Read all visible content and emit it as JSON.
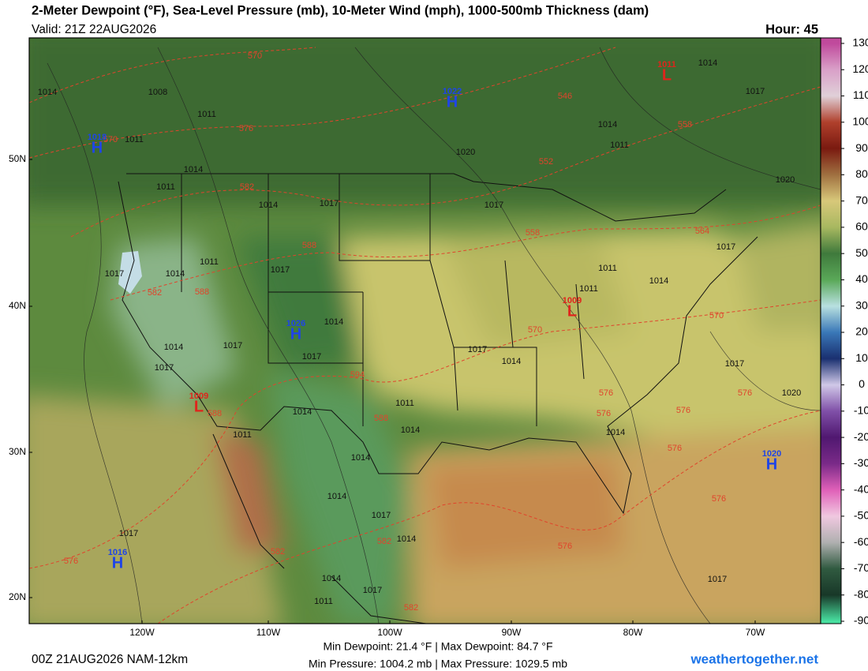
{
  "header": {
    "title": "2-Meter Dewpoint (°F), Sea-Level Pressure (mb), 10-Meter Wind (mph), 1000-500mb Thickness (dam)",
    "valid": "Valid: 21Z 22AUG2026",
    "hour": "Hour: 45"
  },
  "colorbar": {
    "ticks": [
      130,
      120,
      110,
      100,
      90,
      80,
      70,
      60,
      50,
      40,
      30,
      20,
      10,
      0,
      -10,
      -20,
      -30,
      -40,
      -50,
      -60,
      -70,
      -80,
      -90
    ],
    "colors": [
      "#c04a9c",
      "#d9a0c8",
      "#e0d0d8",
      "#b0402c",
      "#7a1a10",
      "#a07040",
      "#d8c87a",
      "#a8b860",
      "#3f7a3c",
      "#5aa858",
      "#b8e0e0",
      "#3a78b8",
      "#1a3070",
      "#d0c8e8",
      "#8050a8",
      "#501870",
      "#7a2a88",
      "#e060b8",
      "#f0c8e0",
      "#b0b0b0",
      "#305a40",
      "#183828",
      "#48e0a0"
    ]
  },
  "map": {
    "lat_labels": [
      "50N",
      "40N",
      "30N",
      "20N"
    ],
    "lon_labels": [
      "120W",
      "110W",
      "100W",
      "90W",
      "80W",
      "70W"
    ],
    "isobar_labels": [
      1014,
      1008,
      1011,
      1011,
      1014,
      1011,
      1014,
      1017,
      1011,
      1014,
      1017,
      1017,
      1014,
      1017,
      1017,
      1014,
      1017,
      1014,
      1011,
      1014,
      1011,
      1017,
      1014,
      1014,
      1011,
      1020,
      1017,
      1011,
      1014,
      1017,
      1017,
      1020,
      1014,
      1014,
      1014,
      1017,
      1014,
      1014,
      1017,
      1011,
      1017,
      1017,
      1014,
      1017,
      1020,
      1011
    ],
    "thickness_labels": [
      570,
      576,
      582,
      546,
      552,
      558,
      558,
      564,
      588,
      582,
      588,
      594,
      588,
      588,
      570,
      570,
      576,
      576,
      576,
      576,
      576,
      576,
      576,
      582,
      582,
      576,
      582,
      570
    ],
    "centers": [
      {
        "letter": "H",
        "value": 1018
      },
      {
        "letter": "H",
        "value": 1022
      },
      {
        "letter": "L",
        "value": 1011
      },
      {
        "letter": "H",
        "value": 1026
      },
      {
        "letter": "L",
        "value": 1009
      },
      {
        "letter": "L",
        "value": 1009
      },
      {
        "letter": "H",
        "value": 1020
      },
      {
        "letter": "H",
        "value": 1016
      }
    ]
  },
  "footer": {
    "run": "00Z 21AUG2026 NAM-12km",
    "dewpoint": "Min Dewpoint:  21.4 °F | Max Dewpoint:  84.7 °F",
    "pressure": "Min Pressure: 1004.2 mb | Max Pressure: 1029.5 mb",
    "site": "weathertogether.net"
  }
}
